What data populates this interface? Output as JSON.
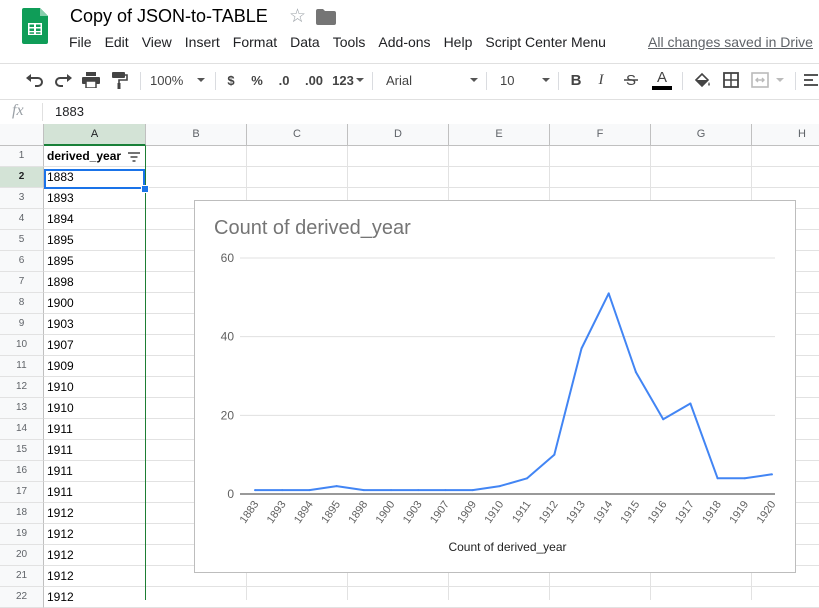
{
  "app": {
    "title": "Copy of JSON-to-TABLE",
    "menu": [
      "File",
      "Edit",
      "View",
      "Insert",
      "Format",
      "Data",
      "Tools",
      "Add-ons",
      "Help",
      "Script Center Menu"
    ],
    "save_status": "All changes saved in Drive"
  },
  "toolbar": {
    "zoom": "100%",
    "currency": "$",
    "percent": "%",
    "decimal_decrease": ".0",
    "decimal_increase": ".00",
    "more_formats": "123",
    "font": "Arial",
    "font_size": "10",
    "bold": "B",
    "italic": "I",
    "text_color": "A"
  },
  "formula_bar": {
    "fx": "fx",
    "value": "1883"
  },
  "sheet": {
    "columns": [
      "A",
      "B",
      "C",
      "D",
      "E",
      "F",
      "G",
      "H"
    ],
    "rows": [
      {
        "n": "1",
        "a": "derived_year"
      },
      {
        "n": "2",
        "a": "1883"
      },
      {
        "n": "3",
        "a": "1893"
      },
      {
        "n": "4",
        "a": "1894"
      },
      {
        "n": "5",
        "a": "1895"
      },
      {
        "n": "6",
        "a": "1895"
      },
      {
        "n": "7",
        "a": "1898"
      },
      {
        "n": "8",
        "a": "1900"
      },
      {
        "n": "9",
        "a": "1903"
      },
      {
        "n": "10",
        "a": "1907"
      },
      {
        "n": "11",
        "a": "1909"
      },
      {
        "n": "12",
        "a": "1910"
      },
      {
        "n": "13",
        "a": "1910"
      },
      {
        "n": "14",
        "a": "1911"
      },
      {
        "n": "15",
        "a": "1911"
      },
      {
        "n": "16",
        "a": "1911"
      },
      {
        "n": "17",
        "a": "1911"
      },
      {
        "n": "18",
        "a": "1912"
      },
      {
        "n": "19",
        "a": "1912"
      },
      {
        "n": "20",
        "a": "1912"
      },
      {
        "n": "21",
        "a": "1912"
      },
      {
        "n": "22",
        "a": "1912"
      }
    ],
    "selected_cell": "A2"
  },
  "colors": {
    "accent": "#1a73e8",
    "line": "#4285f4",
    "sheets_green": "#0f9d58"
  },
  "chart_data": {
    "type": "line",
    "title": "Count of derived_year",
    "xlabel": "Count of derived_year",
    "ylabel": "",
    "ylim": [
      0,
      60
    ],
    "yticks": [
      0,
      20,
      40,
      60
    ],
    "categories": [
      "1883",
      "1893",
      "1894",
      "1895",
      "1898",
      "1900",
      "1903",
      "1907",
      "1909",
      "1910",
      "1911",
      "1912",
      "1913",
      "1914",
      "1915",
      "1916",
      "1917",
      "1918",
      "1919",
      "1920"
    ],
    "values": [
      1,
      1,
      1,
      2,
      1,
      1,
      1,
      1,
      1,
      2,
      4,
      10,
      37,
      51,
      31,
      19,
      23,
      4,
      4,
      5
    ],
    "grid": true,
    "legend": "none"
  }
}
